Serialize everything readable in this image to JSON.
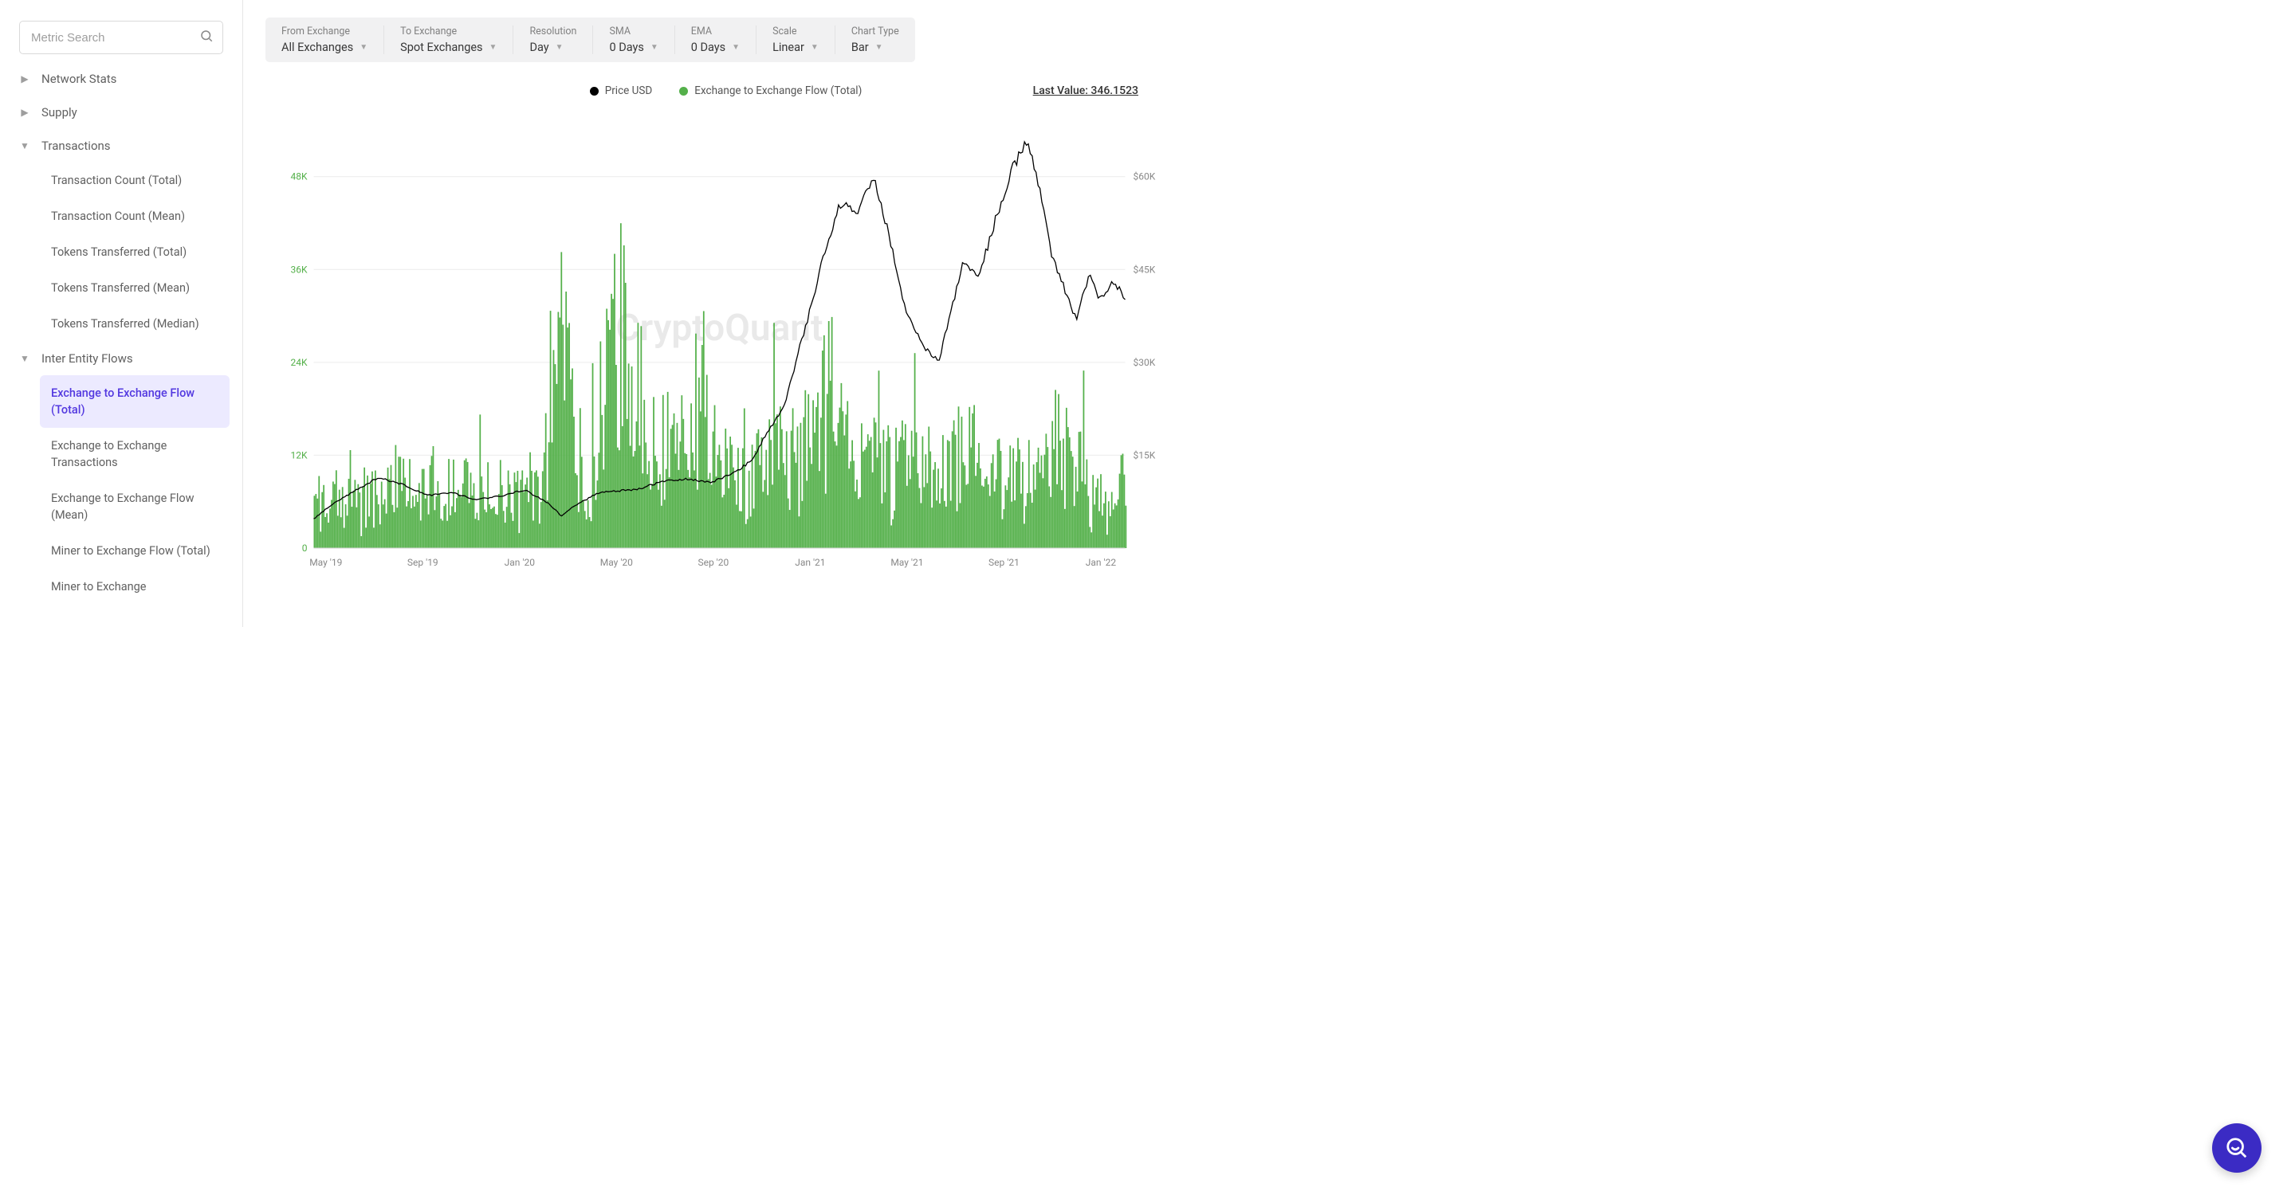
{
  "sidebar": {
    "search_placeholder": "Metric Search",
    "groups": [
      {
        "label": "Network Stats",
        "expanded": false,
        "children": []
      },
      {
        "label": "Supply",
        "expanded": false,
        "children": []
      },
      {
        "label": "Transactions",
        "expanded": true,
        "children": [
          {
            "label": "Transaction Count (Total)",
            "active": false
          },
          {
            "label": "Transaction Count (Mean)",
            "active": false
          },
          {
            "label": "Tokens Transferred (Total)",
            "active": false
          },
          {
            "label": "Tokens Transferred (Mean)",
            "active": false
          },
          {
            "label": "Tokens Transferred (Median)",
            "active": false
          }
        ]
      },
      {
        "label": "Inter Entity Flows",
        "expanded": true,
        "children": [
          {
            "label": "Exchange to Exchange Flow (Total)",
            "active": true
          },
          {
            "label": "Exchange to Exchange Transactions",
            "active": false
          },
          {
            "label": "Exchange to Exchange Flow (Mean)",
            "active": false
          },
          {
            "label": "Miner to Exchange Flow (Total)",
            "active": false
          },
          {
            "label": "Miner to Exchange",
            "active": false
          }
        ]
      }
    ]
  },
  "filters": [
    {
      "label": "From Exchange",
      "value": "All Exchanges"
    },
    {
      "label": "To Exchange",
      "value": "Spot Exchanges"
    },
    {
      "label": "Resolution",
      "value": "Day"
    },
    {
      "label": "SMA",
      "value": "0 Days"
    },
    {
      "label": "EMA",
      "value": "0 Days"
    },
    {
      "label": "Scale",
      "value": "Linear"
    },
    {
      "label": "Chart Type",
      "value": "Bar"
    }
  ],
  "legend": {
    "price": {
      "label": "Price USD",
      "color": "#000000"
    },
    "flow": {
      "label": "Exchange to Exchange Flow (Total)",
      "color": "#54b04a"
    },
    "last_value": "Last Value: 346.1523"
  },
  "watermark": "CryptoQuant",
  "chart": {
    "type": "bar+line",
    "plot_background": "#ffffff",
    "watermark_color": "#e9e9e9",
    "grid_color": "#ececec",
    "left_axis": {
      "label_color": "#54b04a",
      "ticks": [
        0,
        12000,
        24000,
        36000,
        48000
      ],
      "tick_labels": [
        "0",
        "12K",
        "24K",
        "36K",
        "48K"
      ],
      "range": [
        0,
        56000
      ]
    },
    "right_axis": {
      "label_color": "#888888",
      "ticks": [
        15000,
        30000,
        45000,
        60000
      ],
      "tick_labels": [
        "$15K",
        "$30K",
        "$45K",
        "$60K"
      ],
      "range": [
        0,
        70000
      ]
    },
    "x_axis": {
      "tick_labels": [
        "May '19",
        "Sep '19",
        "Jan '20",
        "May '20",
        "Sep '20",
        "Jan '21",
        "May '21",
        "Sep '21",
        "Jan '22"
      ],
      "label_color": "#888888"
    },
    "bars": {
      "color": "#54b04a",
      "count": 520,
      "seed": 97,
      "base_anchors": [
        [
          0.0,
          6500
        ],
        [
          0.04,
          9000
        ],
        [
          0.08,
          7000
        ],
        [
          0.12,
          10400
        ],
        [
          0.16,
          7200
        ],
        [
          0.2,
          8600
        ],
        [
          0.24,
          7400
        ],
        [
          0.28,
          8400
        ],
        [
          0.31,
          52000
        ],
        [
          0.315,
          18000
        ],
        [
          0.34,
          9000
        ],
        [
          0.37,
          32000
        ],
        [
          0.4,
          22000
        ],
        [
          0.44,
          12000
        ],
        [
          0.48,
          21000
        ],
        [
          0.5,
          10000
        ],
        [
          0.54,
          11000
        ],
        [
          0.58,
          13000
        ],
        [
          0.61,
          14000
        ],
        [
          0.64,
          24000
        ],
        [
          0.66,
          12500
        ],
        [
          0.68,
          11800
        ],
        [
          0.72,
          11600
        ],
        [
          0.76,
          11400
        ],
        [
          0.8,
          14000
        ],
        [
          0.84,
          10500
        ],
        [
          0.88,
          9900
        ],
        [
          0.92,
          14500
        ],
        [
          0.96,
          8500
        ],
        [
          1.0,
          8100
        ]
      ]
    },
    "price_line": {
      "color": "#000000",
      "width": 1.3,
      "anchors": [
        [
          0.0,
          4700
        ],
        [
          0.02,
          6800
        ],
        [
          0.05,
          9200
        ],
        [
          0.08,
          11400
        ],
        [
          0.11,
          10300
        ],
        [
          0.14,
          8500
        ],
        [
          0.17,
          9000
        ],
        [
          0.2,
          7800
        ],
        [
          0.23,
          8400
        ],
        [
          0.26,
          9400
        ],
        [
          0.29,
          7200
        ],
        [
          0.305,
          5200
        ],
        [
          0.32,
          6700
        ],
        [
          0.35,
          8900
        ],
        [
          0.38,
          9300
        ],
        [
          0.4,
          9500
        ],
        [
          0.43,
          10800
        ],
        [
          0.46,
          11200
        ],
        [
          0.49,
          10600
        ],
        [
          0.52,
          12300
        ],
        [
          0.54,
          14200
        ],
        [
          0.56,
          19000
        ],
        [
          0.58,
          23000
        ],
        [
          0.6,
          33000
        ],
        [
          0.615,
          40000
        ],
        [
          0.63,
          48000
        ],
        [
          0.65,
          56000
        ],
        [
          0.67,
          54000
        ],
        [
          0.69,
          60000
        ],
        [
          0.71,
          50000
        ],
        [
          0.73,
          38000
        ],
        [
          0.75,
          33000
        ],
        [
          0.77,
          30000
        ],
        [
          0.785,
          38000
        ],
        [
          0.8,
          46000
        ],
        [
          0.82,
          44000
        ],
        [
          0.84,
          53000
        ],
        [
          0.86,
          61000
        ],
        [
          0.88,
          66000
        ],
        [
          0.895,
          58000
        ],
        [
          0.91,
          47000
        ],
        [
          0.925,
          42000
        ],
        [
          0.94,
          37000
        ],
        [
          0.955,
          44000
        ],
        [
          0.97,
          40000
        ],
        [
          0.985,
          43000
        ],
        [
          1.0,
          40500
        ]
      ]
    }
  }
}
